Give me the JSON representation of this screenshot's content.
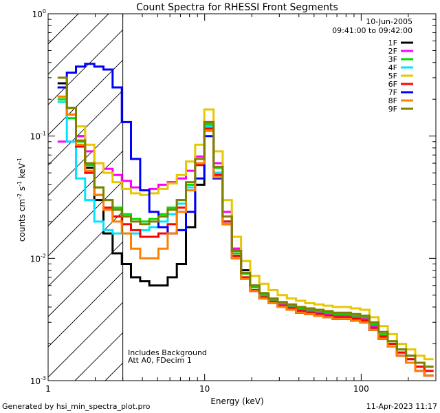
{
  "chart_data": {
    "type": "line",
    "title": "Count Spectra for RHESSI Front Segments",
    "xlabel": "Energy (keV)",
    "ylabel_parts": [
      "counts cm",
      "-2",
      " s",
      "-1",
      " keV",
      "-1"
    ],
    "xscale": "log",
    "yscale": "log",
    "xlim": [
      1,
      300
    ],
    "ylim": [
      0.001,
      1
    ],
    "x_ticks": [
      {
        "value": 1,
        "label": "1"
      },
      {
        "value": 10,
        "label": "10"
      },
      {
        "value": 100,
        "label": "100"
      }
    ],
    "y_ticks": [
      {
        "value": 0.001,
        "base": "10",
        "exp": "-3"
      },
      {
        "value": 0.01,
        "base": "10",
        "exp": "-2"
      },
      {
        "value": 0.1,
        "base": "10",
        "exp": "-1"
      },
      {
        "value": 1,
        "base": "10",
        "exp": "0"
      }
    ],
    "shaded_region_xmax": 3,
    "annotations": [
      "Includes Background",
      "Att A0, FDecim 1"
    ],
    "date": "10-Jun-2005",
    "time_range": "09:41:00 to 09:42:00",
    "series": [
      {
        "name": "1F",
        "color": "#000000",
        "values": [
          0.27,
          0.17,
          0.1,
          0.055,
          0.03,
          0.016,
          0.011,
          0.009,
          0.007,
          0.0065,
          0.006,
          0.006,
          0.007,
          0.009,
          0.018,
          0.04,
          0.12,
          0.05,
          0.02,
          0.012,
          0.008,
          0.006,
          0.005,
          0.0045,
          0.004,
          0.0038,
          0.0036,
          0.0035,
          0.0034,
          0.0033,
          0.0032,
          0.0032,
          0.0031,
          0.003,
          0.0026,
          0.0022,
          0.0019,
          0.0016,
          0.0014,
          0.0012,
          0.0011
        ]
      },
      {
        "name": "2F",
        "color": "#ff00ff",
        "values": [
          0.09,
          0.09,
          0.1,
          0.075,
          0.06,
          0.054,
          0.048,
          0.043,
          0.038,
          0.036,
          0.037,
          0.04,
          0.042,
          0.045,
          0.052,
          0.068,
          0.13,
          0.06,
          0.024,
          0.012,
          0.0075,
          0.0058,
          0.005,
          0.0045,
          0.0042,
          0.004,
          0.0038,
          0.0037,
          0.0036,
          0.0035,
          0.0034,
          0.0034,
          0.0033,
          0.0032,
          0.0028,
          0.0023,
          0.002,
          0.0017,
          0.0015,
          0.0013,
          0.0012
        ]
      },
      {
        "name": "3F",
        "color": "#00dd00",
        "values": [
          0.2,
          0.14,
          0.09,
          0.058,
          0.038,
          0.03,
          0.026,
          0.023,
          0.021,
          0.02,
          0.021,
          0.023,
          0.026,
          0.03,
          0.04,
          0.06,
          0.125,
          0.055,
          0.022,
          0.011,
          0.0075,
          0.0058,
          0.005,
          0.0046,
          0.0043,
          0.0041,
          0.0039,
          0.0038,
          0.0037,
          0.0036,
          0.0035,
          0.0035,
          0.0034,
          0.0033,
          0.0029,
          0.0024,
          0.0021,
          0.0018,
          0.0016,
          0.0014,
          0.0013
        ]
      },
      {
        "name": "4F",
        "color": "#00e5ff",
        "values": [
          0.19,
          0.09,
          0.045,
          0.03,
          0.02,
          0.017,
          0.016,
          0.016,
          0.016,
          0.017,
          0.018,
          0.02,
          0.023,
          0.028,
          0.038,
          0.058,
          0.12,
          0.05,
          0.02,
          0.0105,
          0.007,
          0.0055,
          0.0048,
          0.0044,
          0.0041,
          0.0039,
          0.0037,
          0.0036,
          0.0035,
          0.0034,
          0.0033,
          0.0033,
          0.0032,
          0.0031,
          0.0027,
          0.0023,
          0.002,
          0.0017,
          0.0015,
          0.0013,
          0.0012
        ]
      },
      {
        "name": "5F",
        "color": "#e6c800",
        "values": [
          0.21,
          0.17,
          0.12,
          0.085,
          0.06,
          0.05,
          0.042,
          0.037,
          0.034,
          0.033,
          0.034,
          0.037,
          0.041,
          0.048,
          0.062,
          0.085,
          0.165,
          0.075,
          0.03,
          0.015,
          0.0095,
          0.0072,
          0.0062,
          0.0055,
          0.005,
          0.0047,
          0.0045,
          0.0043,
          0.0042,
          0.0041,
          0.004,
          0.004,
          0.0039,
          0.0038,
          0.0033,
          0.0028,
          0.0024,
          0.002,
          0.0018,
          0.0016,
          0.0015
        ]
      },
      {
        "name": "6F",
        "color": "#ff0000",
        "values": [
          0.25,
          0.15,
          0.082,
          0.05,
          0.033,
          0.026,
          0.022,
          0.019,
          0.017,
          0.015,
          0.015,
          0.016,
          0.019,
          0.026,
          0.036,
          0.058,
          0.115,
          0.048,
          0.02,
          0.0105,
          0.007,
          0.0055,
          0.0048,
          0.0044,
          0.0041,
          0.0039,
          0.0037,
          0.0036,
          0.0035,
          0.0034,
          0.0033,
          0.0033,
          0.0032,
          0.0031,
          0.0027,
          0.0023,
          0.002,
          0.0017,
          0.0015,
          0.0013,
          0.0012
        ]
      },
      {
        "name": "7F",
        "color": "#0000ff",
        "values": [
          0.25,
          0.33,
          0.37,
          0.39,
          0.37,
          0.35,
          0.25,
          0.13,
          0.065,
          0.036,
          0.024,
          0.018,
          0.016,
          0.017,
          0.024,
          0.045,
          0.1,
          0.045,
          0.019,
          0.01,
          0.0068,
          0.0054,
          0.0047,
          0.0043,
          0.004,
          0.0038,
          0.0036,
          0.0035,
          0.0034,
          0.0033,
          0.0032,
          0.0032,
          0.0031,
          0.003,
          0.0026,
          0.0022,
          0.0019,
          0.0016,
          0.0014,
          0.0012,
          0.0011
        ]
      },
      {
        "name": "8F",
        "color": "#ff8000",
        "values": [
          0.21,
          0.15,
          0.085,
          0.052,
          0.033,
          0.025,
          0.02,
          0.016,
          0.012,
          0.01,
          0.01,
          0.012,
          0.016,
          0.024,
          0.036,
          0.06,
          0.11,
          0.046,
          0.019,
          0.01,
          0.0068,
          0.0054,
          0.0047,
          0.0043,
          0.004,
          0.0038,
          0.0036,
          0.0035,
          0.0034,
          0.0033,
          0.0032,
          0.0032,
          0.0031,
          0.003,
          0.0026,
          0.0022,
          0.0019,
          0.0016,
          0.0014,
          0.0012,
          0.0011
        ]
      },
      {
        "name": "9F",
        "color": "#808000",
        "values": [
          0.3,
          0.17,
          0.092,
          0.06,
          0.038,
          0.03,
          0.025,
          0.022,
          0.02,
          0.019,
          0.02,
          0.022,
          0.025,
          0.03,
          0.042,
          0.065,
          0.13,
          0.056,
          0.022,
          0.0115,
          0.0076,
          0.006,
          0.0052,
          0.0047,
          0.0044,
          0.0042,
          0.004,
          0.0039,
          0.0038,
          0.0037,
          0.0036,
          0.0036,
          0.0035,
          0.0034,
          0.003,
          0.0025,
          0.0021,
          0.0018,
          0.0016,
          0.0014,
          0.0013
        ]
      }
    ]
  },
  "footer": {
    "generated": "Generated by hsi_min_spectra_plot.pro",
    "timestamp": "11-Apr-2023 11:17"
  }
}
